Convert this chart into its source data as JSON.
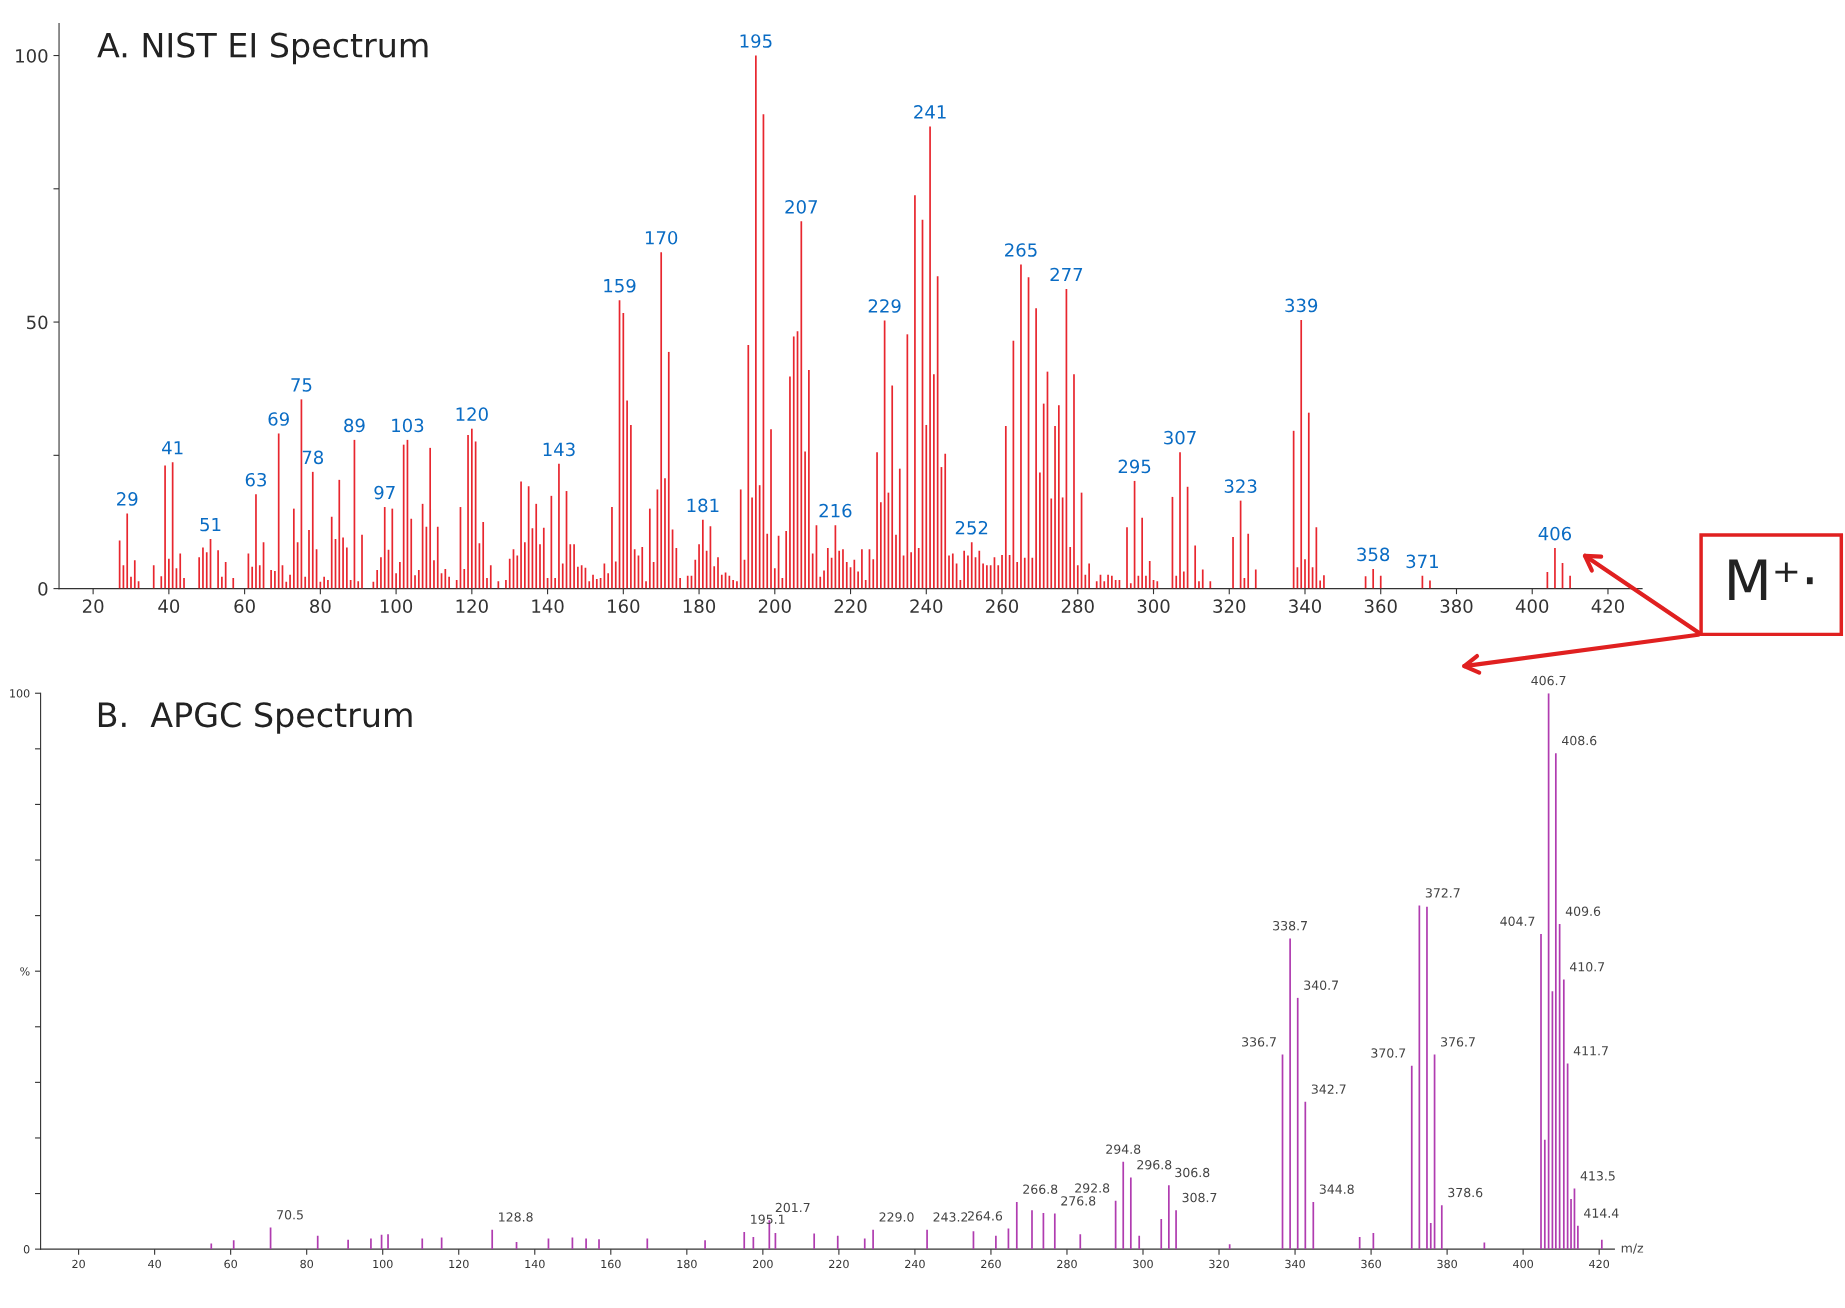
{
  "chart_data": [
    {
      "type": "bar",
      "title": "A. NIST EI Spectrum",
      "color": "#e8262e",
      "x": [
        27,
        28,
        29,
        30,
        31,
        32,
        36,
        38,
        39,
        40,
        41,
        42,
        43,
        44,
        48,
        49,
        50,
        51,
        53,
        54,
        55,
        57,
        61,
        62,
        63,
        64,
        65,
        67,
        68,
        69,
        70,
        71,
        72,
        73,
        74,
        75,
        76,
        77,
        78,
        79,
        80,
        81,
        82,
        83,
        84,
        85,
        86,
        87,
        88,
        89,
        90,
        91,
        94,
        95,
        96,
        97,
        98,
        99,
        100,
        101,
        102,
        103,
        104,
        105,
        106,
        107,
        108,
        109,
        110,
        111,
        112,
        113,
        114,
        116,
        117,
        118,
        119,
        120,
        121,
        122,
        123,
        124,
        125,
        127,
        129,
        130,
        131,
        132,
        133,
        134,
        135,
        136,
        137,
        138,
        139,
        140,
        141,
        142,
        143,
        144,
        145,
        146,
        147,
        148,
        149,
        150,
        151,
        152,
        153,
        154,
        155,
        156,
        157,
        158,
        159,
        160,
        161,
        162,
        163,
        164,
        165,
        166,
        167,
        168,
        169,
        170,
        171,
        172,
        173,
        174,
        175,
        177,
        178,
        179,
        180,
        181,
        182,
        183,
        184,
        185,
        186,
        187,
        188,
        189,
        190,
        191,
        192,
        193,
        194,
        195,
        196,
        197,
        198,
        199,
        200,
        201,
        202,
        203,
        204,
        205,
        206,
        207,
        208,
        209,
        210,
        211,
        212,
        213,
        214,
        215,
        216,
        217,
        218,
        219,
        220,
        221,
        222,
        223,
        224,
        225,
        226,
        227,
        228,
        229,
        230,
        231,
        232,
        233,
        234,
        235,
        236,
        237,
        238,
        239,
        240,
        241,
        242,
        243,
        244,
        245,
        246,
        247,
        248,
        249,
        250,
        251,
        252,
        253,
        254,
        255,
        256,
        257,
        258,
        259,
        260,
        261,
        262,
        263,
        264,
        265,
        266,
        267,
        268,
        269,
        270,
        271,
        272,
        273,
        274,
        275,
        276,
        277,
        278,
        279,
        280,
        281,
        282,
        283,
        285,
        286,
        287,
        288,
        289,
        290,
        291,
        293,
        294,
        295,
        296,
        297,
        298,
        299,
        300,
        301,
        305,
        306,
        307,
        308,
        309,
        311,
        312,
        313,
        315,
        321,
        323,
        324,
        325,
        327,
        337,
        338,
        339,
        340,
        341,
        342,
        343,
        344,
        345,
        356,
        358,
        360,
        371,
        373,
        404,
        406,
        408,
        410
      ],
      "values": [
        9.0,
        4.4,
        14.1,
        2.2,
        5.3,
        1.4,
        4.4,
        2.3,
        23.1,
        5.6,
        23.7,
        3.8,
        6.6,
        2.0,
        5.9,
        7.7,
        6.8,
        9.3,
        7.2,
        2.2,
        5.0,
        2.0,
        6.6,
        4.1,
        17.7,
        4.4,
        8.7,
        3.5,
        3.3,
        29.1,
        4.4,
        1.3,
        2.6,
        15.0,
        8.7,
        35.5,
        2.2,
        11.0,
        21.9,
        7.4,
        1.3,
        2.2,
        1.6,
        13.5,
        9.3,
        20.4,
        9.6,
        7.7,
        1.6,
        27.9,
        1.4,
        10.1,
        1.3,
        3.5,
        5.9,
        15.3,
        7.3,
        15.0,
        2.9,
        5.0,
        27.0,
        27.9,
        13.1,
        2.5,
        3.5,
        15.9,
        11.6,
        26.4,
        5.3,
        11.6,
        2.9,
        3.7,
        2.2,
        1.6,
        15.3,
        3.7,
        28.8,
        30.0,
        27.6,
        8.5,
        12.5,
        2.0,
        4.4,
        1.4,
        1.6,
        5.6,
        7.4,
        6.2,
        20.1,
        8.7,
        19.2,
        11.3,
        15.9,
        8.3,
        11.4,
        2.0,
        17.4,
        2.0,
        23.4,
        4.7,
        18.3,
        8.3,
        8.3,
        4.1,
        4.4,
        3.9,
        1.4,
        2.6,
        1.8,
        2.0,
        4.7,
        2.9,
        15.3,
        5.1,
        54.1,
        51.7,
        35.3,
        30.7,
        7.4,
        6.2,
        7.8,
        1.4,
        15.0,
        5.0,
        18.6,
        63.1,
        20.7,
        44.4,
        11.1,
        7.6,
        2.0,
        2.4,
        2.4,
        5.4,
        8.3,
        12.9,
        7.1,
        11.7,
        4.2,
        5.9,
        2.6,
        3.0,
        2.4,
        1.6,
        1.4,
        18.6,
        5.4,
        45.7,
        17.1,
        100,
        19.4,
        89.0,
        10.3,
        29.9,
        3.8,
        9.9,
        2.0,
        10.8,
        39.8,
        47.3,
        48.3,
        68.9,
        25.7,
        41.0,
        6.6,
        11.9,
        2.2,
        3.4,
        7.6,
        5.8,
        11.9,
        7.1,
        7.4,
        5.0,
        4.0,
        5.4,
        3.2,
        7.4,
        1.6,
        7.4,
        5.5,
        25.6,
        16.2,
        50.3,
        18.0,
        38.1,
        10.1,
        22.5,
        6.2,
        47.7,
        6.8,
        73.8,
        7.6,
        69.2,
        30.7,
        86.7,
        40.2,
        58.6,
        22.8,
        25.3,
        6.2,
        6.6,
        4.7,
        1.6,
        7.1,
        6.2,
        8.7,
        5.9,
        7.1,
        4.7,
        4.4,
        4.4,
        5.9,
        4.4,
        6.3,
        30.5,
        6.3,
        46.5,
        5.0,
        60.8,
        5.8,
        58.4,
        5.8,
        52.6,
        21.8,
        34.7,
        40.7,
        16.9,
        30.5,
        34.4,
        17.1,
        56.2,
        7.8,
        40.2,
        4.4,
        18.0,
        2.6,
        4.7,
        1.4,
        2.6,
        1.4,
        2.6,
        2.4,
        1.6,
        1.6,
        11.5,
        1.0,
        20.2,
        2.4,
        13.3,
        2.4,
        5.2,
        1.6,
        1.4,
        17.2,
        2.4,
        25.6,
        3.2,
        19.1,
        8.1,
        1.4,
        3.6,
        1.4,
        9.7,
        16.5,
        2.0,
        10.3,
        3.6,
        29.6,
        4.0,
        50.4,
        5.5,
        33.0,
        4.0,
        11.5,
        1.5,
        2.5,
        2.3,
        3.7,
        2.4,
        2.4,
        1.5,
        3.1,
        7.6,
        4.8,
        2.4
      ],
      "xlim": [
        11,
        429
      ],
      "ylim": [
        0,
        106
      ],
      "xticks": [
        20,
        40,
        60,
        80,
        100,
        120,
        140,
        160,
        180,
        200,
        220,
        240,
        260,
        280,
        300,
        320,
        340,
        360,
        380,
        400,
        420
      ],
      "yticks": [
        0,
        {
          "value": 25,
          "label": null
        },
        50,
        {
          "value": 75,
          "label": null
        },
        100
      ],
      "annotations": [
        {
          "text": "29",
          "x": 29,
          "y": 14.1
        },
        {
          "text": "41",
          "x": 41,
          "y": 23.7
        },
        {
          "text": "51",
          "x": 51,
          "y": 9.3
        },
        {
          "text": "63",
          "x": 63,
          "y": 17.7
        },
        {
          "text": "69",
          "x": 69,
          "y": 29.1
        },
        {
          "text": "75",
          "x": 75,
          "y": 35.5
        },
        {
          "text": "78",
          "x": 78,
          "y": 21.9
        },
        {
          "text": "89",
          "x": 89,
          "y": 27.9
        },
        {
          "text": "97",
          "x": 97,
          "y": 15.3
        },
        {
          "text": "103",
          "x": 103,
          "y": 27.9
        },
        {
          "text": "120",
          "x": 120,
          "y": 30.0
        },
        {
          "text": "143",
          "x": 143,
          "y": 23.4
        },
        {
          "text": "159",
          "x": 159,
          "y": 54.1
        },
        {
          "text": "170",
          "x": 170,
          "y": 63.1
        },
        {
          "text": "181",
          "x": 181,
          "y": 12.9
        },
        {
          "text": "195",
          "x": 195,
          "y": 100
        },
        {
          "text": "207",
          "x": 207,
          "y": 68.9
        },
        {
          "text": "216",
          "x": 216,
          "y": 11.9
        },
        {
          "text": "229",
          "x": 229,
          "y": 50.3
        },
        {
          "text": "241",
          "x": 241,
          "y": 86.7
        },
        {
          "text": "252",
          "x": 252,
          "y": 8.7
        },
        {
          "text": "265",
          "x": 265,
          "y": 60.8
        },
        {
          "text": "277",
          "x": 277,
          "y": 56.2
        },
        {
          "text": "295",
          "x": 295,
          "y": 20.2
        },
        {
          "text": "307",
          "x": 307,
          "y": 25.6
        },
        {
          "text": "323",
          "x": 323,
          "y": 16.5
        },
        {
          "text": "339",
          "x": 339,
          "y": 50.4
        },
        {
          "text": "358",
          "x": 358,
          "y": 3.7
        },
        {
          "text": "371",
          "x": 371,
          "y": 2.4
        },
        {
          "text": "406",
          "x": 406,
          "y": 7.6
        },
        "M⁺·"
      ]
    },
    {
      "type": "bar",
      "title": "B.  APGC Spectrum",
      "xlabel": "m/z",
      "color": "#b03cb0",
      "x": [
        54.9,
        60.8,
        70.5,
        82.9,
        90.9,
        96.9,
        99.7,
        101.4,
        110.4,
        115.5,
        128.8,
        135.2,
        143.6,
        149.9,
        153.5,
        156.9,
        169.6,
        184.8,
        195.1,
        197.5,
        201.7,
        203.3,
        213.5,
        219.7,
        226.8,
        229.0,
        243.2,
        255.4,
        261.3,
        264.6,
        266.8,
        270.8,
        273.8,
        276.8,
        283.5,
        292.8,
        294.8,
        296.8,
        299.0,
        304.8,
        306.8,
        308.7,
        322.8,
        336.7,
        338.7,
        340.7,
        342.7,
        344.8,
        357.0,
        360.6,
        370.7,
        372.7,
        374.7,
        375.7,
        376.7,
        378.6,
        389.8,
        404.7,
        405.7,
        406.7,
        407.7,
        408.6,
        409.6,
        410.7,
        411.7,
        412.6,
        413.5,
        414.4,
        420.7
      ],
      "values": [
        1.0,
        1.6,
        3.9,
        2.4,
        1.7,
        1.9,
        2.6,
        2.7,
        1.9,
        2.1,
        3.5,
        1.3,
        1.9,
        2.1,
        1.9,
        1.8,
        1.9,
        1.6,
        3.1,
        2.2,
        5.2,
        2.9,
        2.8,
        2.4,
        1.9,
        3.5,
        3.5,
        3.2,
        2.4,
        3.7,
        8.5,
        7.0,
        6.5,
        6.4,
        2.7,
        8.7,
        15.7,
        12.9,
        2.4,
        5.4,
        11.5,
        7.0,
        0.9,
        35.0,
        55.9,
        45.2,
        26.5,
        8.5,
        2.2,
        2.9,
        33.0,
        61.8,
        61.6,
        4.7,
        35.0,
        7.9,
        1.2,
        56.7,
        19.7,
        100,
        46.4,
        89.2,
        58.5,
        48.5,
        33.4,
        9.0,
        10.9,
        4.2,
        1.7
      ],
      "xlim": [
        10,
        424
      ],
      "ylim": [
        0,
        100
      ],
      "xticks": [
        20,
        40,
        60,
        80,
        100,
        120,
        140,
        160,
        180,
        200,
        220,
        240,
        260,
        280,
        300,
        320,
        340,
        360,
        380,
        400,
        420
      ],
      "yticks": [
        0,
        {
          "value": 10,
          "label": null
        },
        {
          "value": 20,
          "label": null
        },
        {
          "value": 30,
          "label": null
        },
        {
          "value": 40,
          "label": null
        },
        {
          "value": 50,
          "label": "%"
        },
        {
          "value": 60,
          "label": null
        },
        {
          "value": 70,
          "label": null
        },
        {
          "value": 80,
          "label": null
        },
        {
          "value": 90,
          "label": null
        },
        100
      ],
      "annotations": [
        {
          "text": "70.5",
          "x": 70.5,
          "y": 3.9
        },
        {
          "text": "128.8",
          "x": 128.8,
          "y": 3.5
        },
        {
          "text": "195.1",
          "x": 195.1,
          "y": 3.1
        },
        {
          "text": "201.7",
          "x": 201.7,
          "y": 5.2
        },
        {
          "text": "229.0",
          "x": 229.0,
          "y": 3.5
        },
        {
          "text": "243.2",
          "x": 243.2,
          "y": 3.5
        },
        {
          "text": "264.6",
          "x": 264.6,
          "y": 3.7
        },
        {
          "text": "266.8",
          "x": 266.8,
          "y": 8.5
        },
        {
          "text": "276.8",
          "x": 276.8,
          "y": 6.4
        },
        {
          "text": "292.8",
          "x": 292.8,
          "y": 8.7
        },
        {
          "text": "294.8",
          "x": 294.8,
          "y": 15.7
        },
        {
          "text": "296.8",
          "x": 296.8,
          "y": 12.9
        },
        {
          "text": "306.8",
          "x": 306.8,
          "y": 11.5
        },
        {
          "text": "308.7",
          "x": 308.7,
          "y": 7.0
        },
        {
          "text": "336.7",
          "x": 336.7,
          "y": 35.0
        },
        {
          "text": "338.7",
          "x": 338.7,
          "y": 55.9
        },
        {
          "text": "340.7",
          "x": 340.7,
          "y": 45.2
        },
        {
          "text": "342.7",
          "x": 342.7,
          "y": 26.5
        },
        {
          "text": "344.8",
          "x": 344.8,
          "y": 8.5
        },
        {
          "text": "370.7",
          "x": 370.7,
          "y": 33.0
        },
        {
          "text": "372.7",
          "x": 372.7,
          "y": 61.8
        },
        {
          "text": "376.7",
          "x": 376.7,
          "y": 35.0
        },
        {
          "text": "378.6",
          "x": 378.6,
          "y": 7.9
        },
        {
          "text": "404.7",
          "x": 404.7,
          "y": 56.7
        },
        {
          "text": "406.7",
          "x": 406.7,
          "y": 100
        },
        {
          "text": "408.6",
          "x": 408.6,
          "y": 89.2
        },
        {
          "text": "409.6",
          "x": 409.6,
          "y": 58.5
        },
        {
          "text": "410.7",
          "x": 410.7,
          "y": 48.5
        },
        {
          "text": "411.7",
          "x": 411.7,
          "y": 33.4
        },
        {
          "text": "413.5",
          "x": 413.5,
          "y": 10.9
        },
        {
          "text": "414.4",
          "x": 414.4,
          "y": 4.2
        }
      ]
    }
  ]
}
